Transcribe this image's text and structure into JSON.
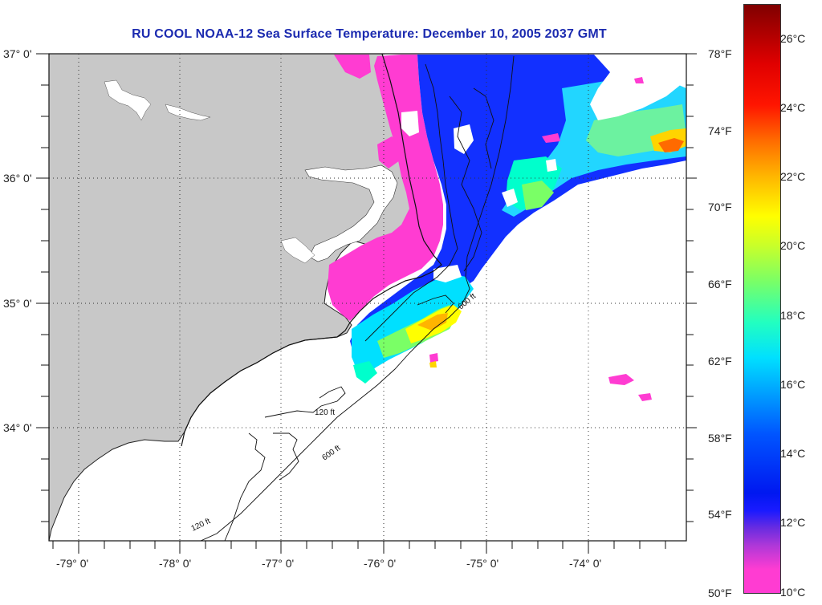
{
  "title": "RU COOL  NOAA-12  Sea Surface Temperature:  December 10, 2005 2037 GMT",
  "latitude_labels": [
    "37° 0'",
    "36° 0'",
    "35° 0'",
    "34° 0'"
  ],
  "longitude_labels": [
    "-79° 0'",
    "-78° 0'",
    "-77° 0'",
    "-76° 0'",
    "-75° 0'",
    "-74° 0'"
  ],
  "isobath_labels": [
    "120 ft",
    "600 ft"
  ],
  "colorbar": {
    "fahrenheit_ticks": [
      "78°F",
      "74°F",
      "70°F",
      "66°F",
      "62°F",
      "58°F",
      "54°F",
      "50°F"
    ],
    "celsius_ticks": [
      "26°C",
      "24°C",
      "22°C",
      "20°C",
      "18°C",
      "16°C",
      "14°C",
      "12°C",
      "10°C"
    ],
    "min_celsius": 10,
    "max_celsius": 27,
    "colors": {
      "cold": "#ff3cd2",
      "cool": "#1020ff",
      "mid": "#00ffcc",
      "warm": "#ffff00",
      "hot": "#ff1500",
      "max": "#800000"
    }
  },
  "colors": {
    "land": "#c8c8c8",
    "no_data": "#ffffff",
    "title": "#1c2bb0",
    "cloud": "#ffffff"
  }
}
